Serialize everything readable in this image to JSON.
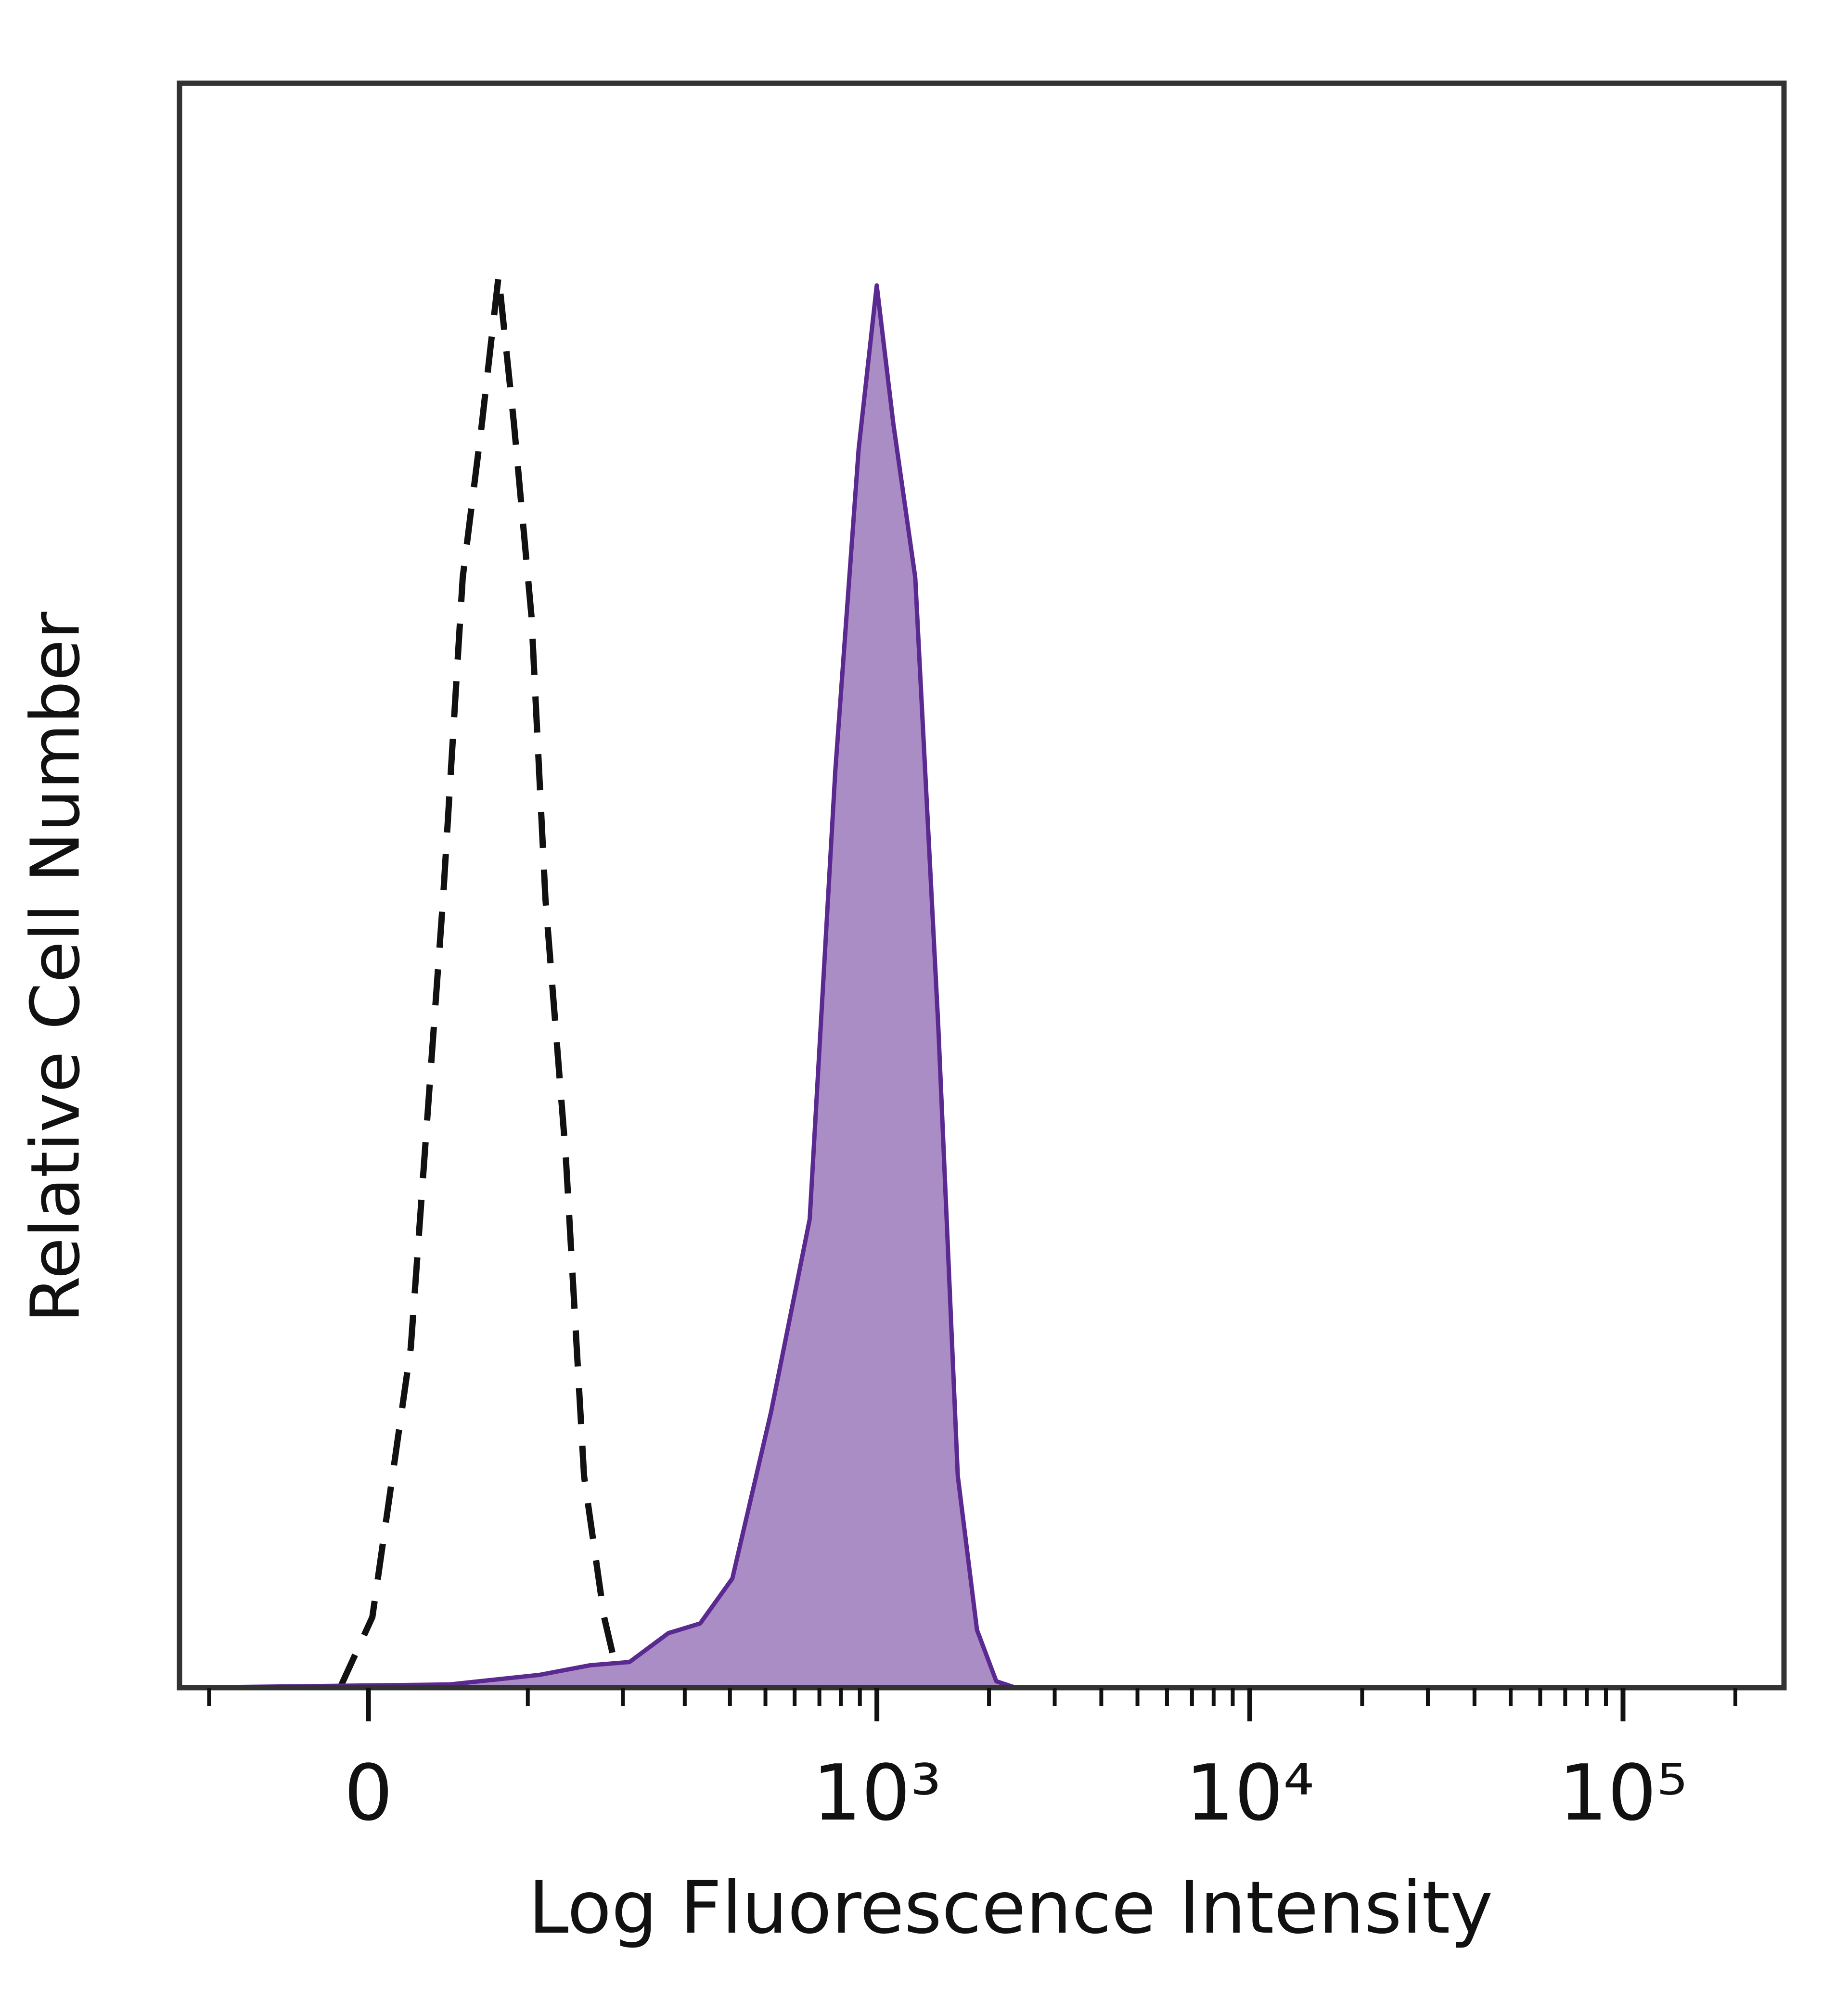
{
  "chart_data": {
    "type": "histogram-overlay",
    "x_label": "Log Fluorescence Intensity",
    "y_label": "Relative Cell Number",
    "x_scale": {
      "type": "arcsinh",
      "cofactor": 87
    },
    "xlim": [
      -126,
      270000
    ],
    "xticks": [
      0,
      {
        "value": 1000,
        "label": "10³"
      },
      {
        "value": 10000,
        "label": "10⁴"
      },
      {
        "value": 100000,
        "label": "10⁵"
      }
    ],
    "xminorticks": [
      -100,
      100,
      200,
      300,
      400,
      500,
      600,
      700,
      800,
      900,
      2000,
      3000,
      4000,
      5000,
      6000,
      7000,
      8000,
      9000,
      20000,
      30000,
      40000,
      50000,
      60000,
      70000,
      80000,
      90000,
      200000
    ],
    "ylim": [
      0,
      100
    ],
    "series": [
      {
        "color": "#111111",
        "dashed": true,
        "fill": "none",
        "x": [
          -15.3,
          2.1,
          23,
          41.5,
          53.5,
          66,
          77.6,
          89,
          103,
          115,
          134,
          153,
          176,
          191,
          209
        ],
        "values": [
          0,
          4.4,
          21.2,
          49.2,
          69.2,
          78.8,
          88,
          78.8,
          66.8,
          49.2,
          33.2,
          13.2,
          4.4,
          1.2,
          0
        ]
      },
      {
        "color": "#5b2a91",
        "dashed": false,
        "fill": "#ab8dc6",
        "x": [
          -126,
          45.3,
          110,
          160,
          209,
          270,
          331,
          406,
          518,
          659,
          773,
          893,
          999,
          1107,
          1268,
          1462,
          1649,
          1857,
          2092,
          2358,
          270000
        ],
        "values": [
          0,
          0.2,
          0.8,
          1.4,
          1.6,
          3.4,
          4.0,
          6.8,
          17.2,
          29.2,
          57.2,
          77.2,
          87.4,
          78.8,
          69.2,
          41.2,
          13.2,
          3.6,
          0.4,
          0,
          0
        ]
      }
    ]
  }
}
